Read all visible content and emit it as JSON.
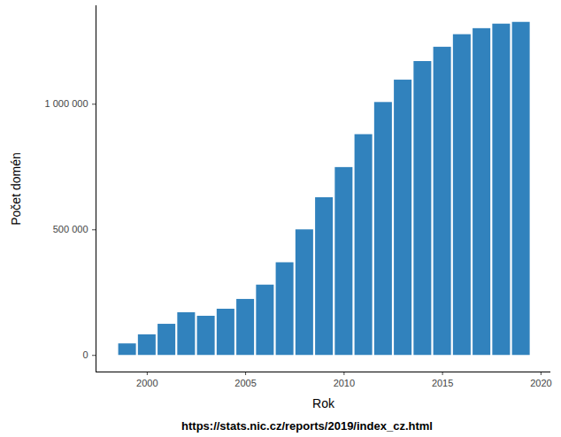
{
  "chart_data": {
    "type": "bar",
    "x_label": "Rok",
    "y_label": "Počet domén",
    "caption": "https://stats.nic.cz/reports/2019/index_cz.html",
    "x": [
      1999,
      2000,
      2001,
      2002,
      2003,
      2004,
      2005,
      2006,
      2007,
      2008,
      2009,
      2010,
      2011,
      2012,
      2013,
      2014,
      2015,
      2016,
      2017,
      2018,
      2019
    ],
    "values": [
      46000,
      82000,
      124000,
      170000,
      156000,
      184000,
      223000,
      280000,
      369000,
      500000,
      628000,
      748000,
      879000,
      1007000,
      1096000,
      1170000,
      1227000,
      1277000,
      1301000,
      1319000,
      1326000
    ],
    "color": "#3182bd",
    "xlim": [
      1997.4,
      2020.5
    ],
    "xticks": [
      2000,
      2005,
      2010,
      2015,
      2020
    ],
    "ylim": [
      -66000,
      1392000
    ],
    "yticks": [
      0,
      {
        "value": 500000,
        "label": "500 000"
      },
      {
        "value": 1000000,
        "label": "1 000 000"
      }
    ],
    "grid": false
  }
}
